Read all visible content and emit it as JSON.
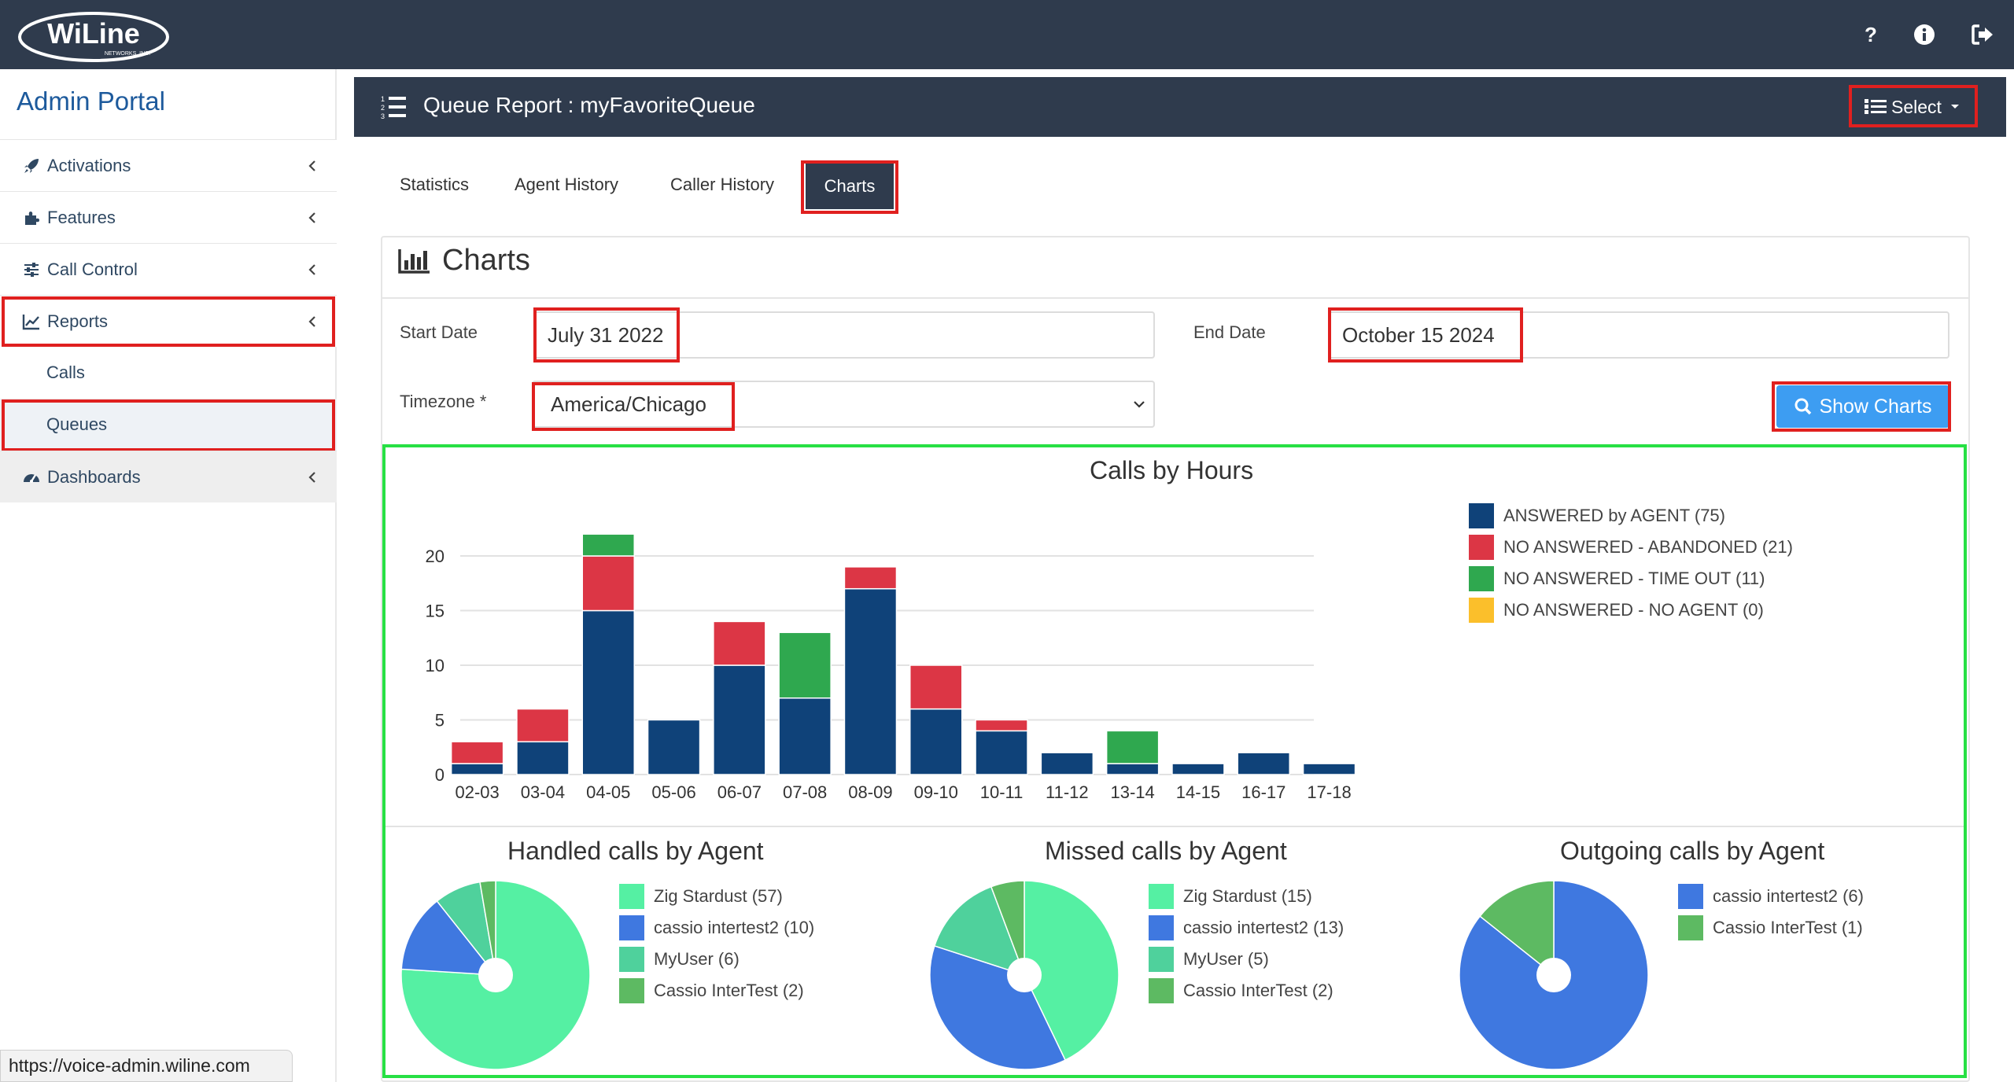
{
  "brand": {
    "logo_text": "WiLine",
    "logo_sub": "NETWORKS, INC."
  },
  "topbar": {
    "help_icon": "question-icon",
    "info_icon": "info-icon",
    "logout_icon": "logout-icon"
  },
  "sidebar": {
    "title": "Admin Portal",
    "items": [
      {
        "label": "Activations",
        "icon": "rocket-icon"
      },
      {
        "label": "Features",
        "icon": "puzzle-icon"
      },
      {
        "label": "Call Control",
        "icon": "sliders-icon"
      },
      {
        "label": "Reports",
        "icon": "line-chart-icon"
      },
      {
        "label": "Dashboards",
        "icon": "dashboard-icon"
      }
    ],
    "subitems": [
      {
        "label": "Calls"
      },
      {
        "label": "Queues"
      }
    ]
  },
  "status_url": "https://voice-admin.wiline.com",
  "panel": {
    "title": "Queue Report : myFavoriteQueue",
    "select_label": "Select"
  },
  "tabs": [
    {
      "label": "Statistics"
    },
    {
      "label": "Agent History"
    },
    {
      "label": "Caller History"
    },
    {
      "label": "Charts"
    }
  ],
  "charts_section": {
    "heading": "Charts"
  },
  "form": {
    "start_label": "Start Date",
    "start_value": "July 31 2022",
    "end_label": "End Date",
    "end_value": "October 15 2024",
    "tz_label": "Timezone *",
    "tz_value": "America/Chicago",
    "show_button": "Show Charts"
  },
  "colors": {
    "answered": "#0f4279",
    "abandoned": "#dc3645",
    "timeout": "#2fa84f",
    "noagent": "#fbbf2b",
    "accent": "#3d9df2",
    "header": "#2f3b4d"
  },
  "chart_data": [
    {
      "type": "bar",
      "title": "Calls by Hours",
      "stacked": true,
      "categories": [
        "02-03",
        "03-04",
        "04-05",
        "05-06",
        "06-07",
        "07-08",
        "08-09",
        "09-10",
        "10-11",
        "11-12",
        "13-14",
        "14-15",
        "16-17",
        "17-18"
      ],
      "series": [
        {
          "name": "ANSWERED by AGENT (75)",
          "color": "#0f4279",
          "values": [
            1,
            3,
            15,
            5,
            10,
            7,
            17,
            6,
            4,
            2,
            1,
            1,
            2,
            1
          ]
        },
        {
          "name": "NO ANSWERED - ABANDONED (21)",
          "color": "#dc3645",
          "values": [
            2,
            3,
            5,
            0,
            4,
            0,
            2,
            4,
            1,
            0,
            0,
            0,
            0,
            0
          ]
        },
        {
          "name": "NO ANSWERED - TIME OUT (11)",
          "color": "#2fa84f",
          "values": [
            0,
            0,
            2,
            0,
            0,
            6,
            0,
            0,
            0,
            0,
            3,
            0,
            0,
            0
          ]
        },
        {
          "name": "NO ANSWERED - NO AGENT (0)",
          "color": "#fbbf2b",
          "values": [
            0,
            0,
            0,
            0,
            0,
            0,
            0,
            0,
            0,
            0,
            0,
            0,
            0,
            0
          ]
        }
      ],
      "yticks": [
        0,
        5,
        10,
        15,
        20
      ],
      "ylim": [
        0,
        22
      ],
      "legend": "right"
    },
    {
      "type": "pie",
      "title": "Handled calls by Agent",
      "slices": [
        {
          "label": "Zig Stardust (57)",
          "value": 57,
          "color": "#55f0a3"
        },
        {
          "label": "cassio intertest2 (10)",
          "value": 10,
          "color": "#3f78e0"
        },
        {
          "label": "MyUser  (6)",
          "value": 6,
          "color": "#4fd19c"
        },
        {
          "label": "Cassio InterTest (2)",
          "value": 2,
          "color": "#5dba62"
        }
      ]
    },
    {
      "type": "pie",
      "title": "Missed calls by Agent",
      "slices": [
        {
          "label": "Zig Stardust (15)",
          "value": 15,
          "color": "#55f0a3"
        },
        {
          "label": "cassio intertest2 (13)",
          "value": 13,
          "color": "#3f78e0"
        },
        {
          "label": "MyUser  (5)",
          "value": 5,
          "color": "#4fd19c"
        },
        {
          "label": "Cassio InterTest (2)",
          "value": 2,
          "color": "#5dba62"
        }
      ]
    },
    {
      "type": "pie",
      "title": "Outgoing calls by Agent",
      "slices": [
        {
          "label": "cassio intertest2 (6)",
          "value": 6,
          "color": "#3f78e0"
        },
        {
          "label": "Cassio InterTest (1)",
          "value": 1,
          "color": "#5dba62"
        }
      ]
    }
  ]
}
